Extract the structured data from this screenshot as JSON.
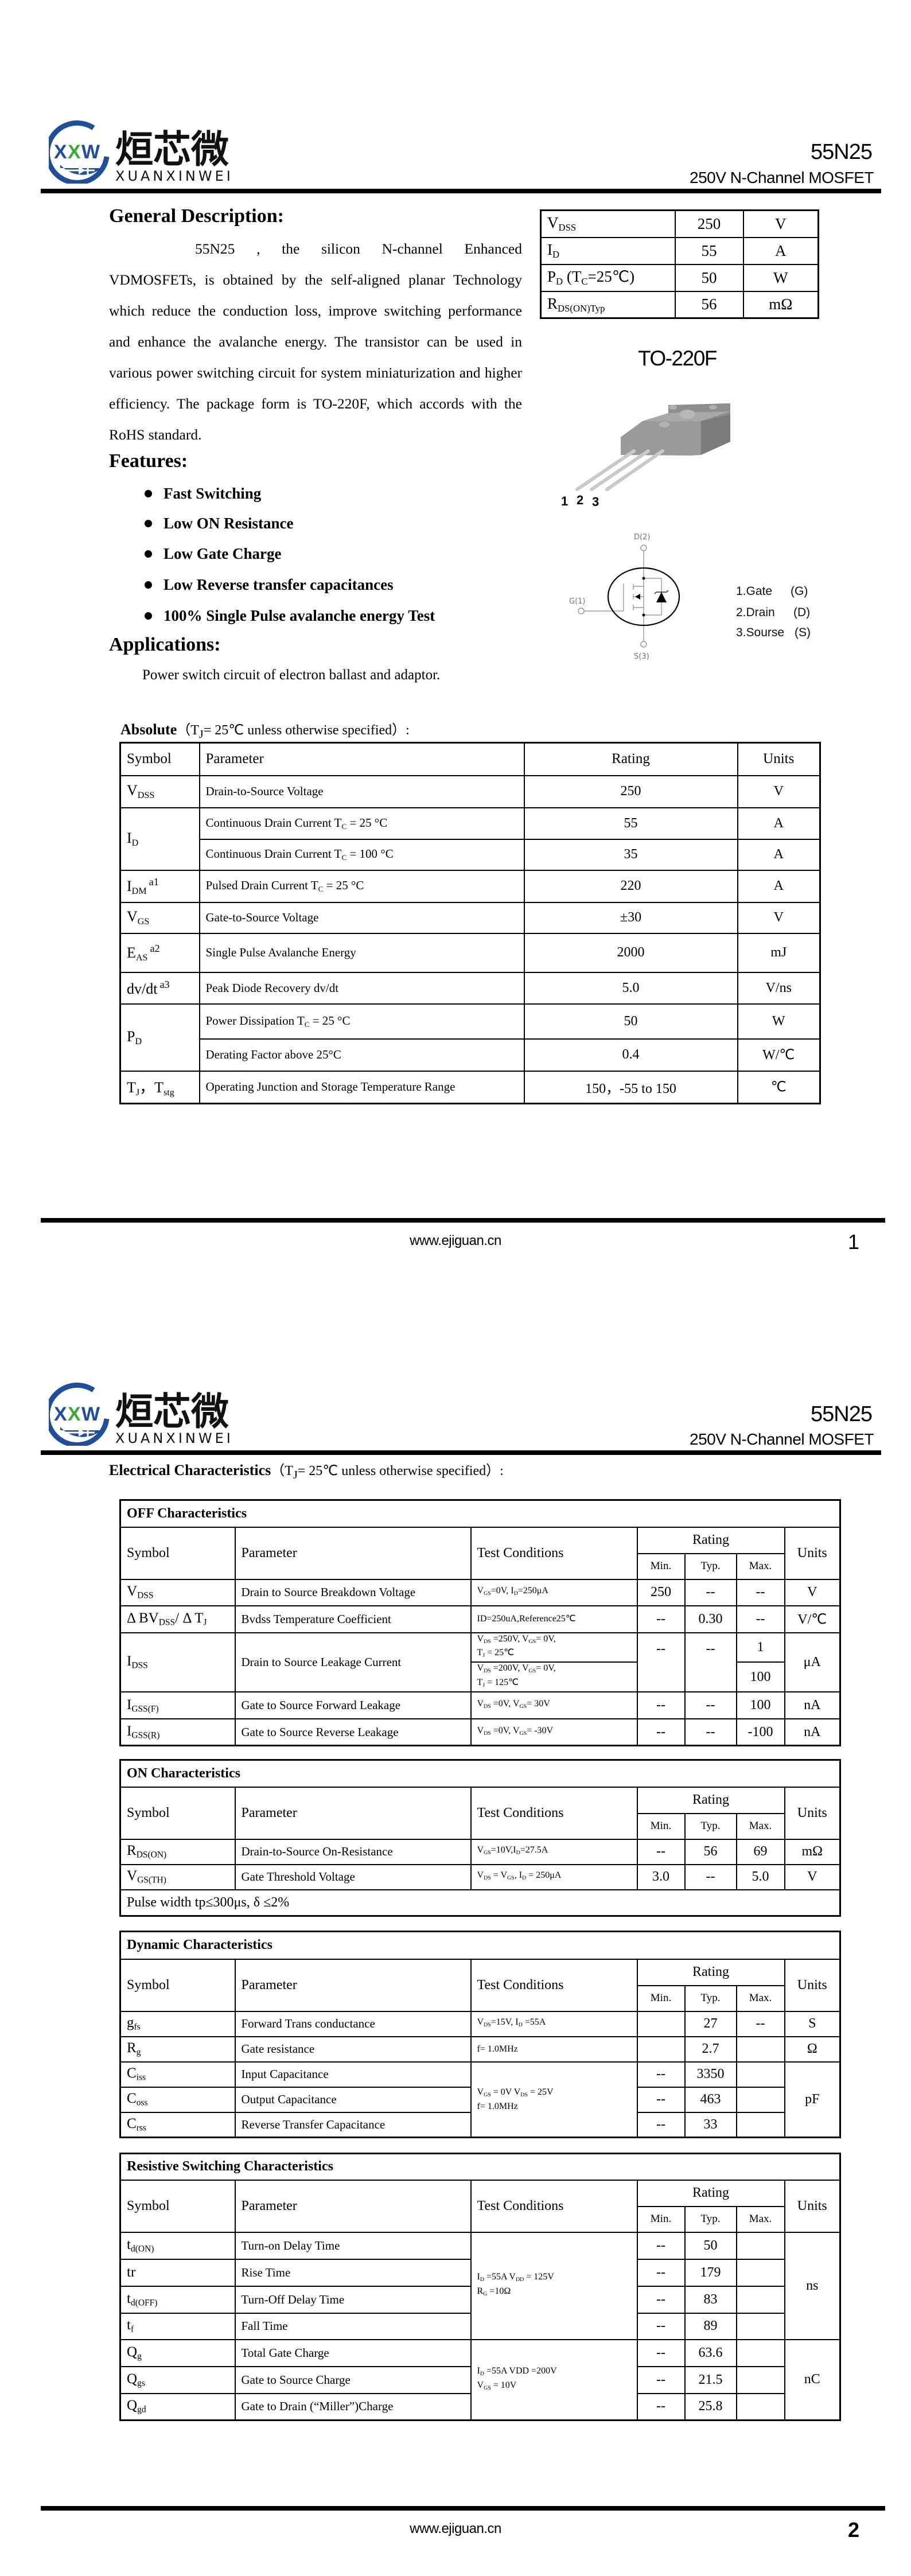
{
  "brand": {
    "logo_cn": "烜芯微",
    "logo_en": "XUANXINWEI",
    "logo_mark": "XXW",
    "blue": "#1f4e9a",
    "green": "#3aaa35"
  },
  "header": {
    "part": "55N25",
    "subtitle": "250V N-Channel MOSFET"
  },
  "footer": {
    "url": "www.ejiguan.cn",
    "pages": [
      "1",
      "2"
    ]
  },
  "page1": {
    "general_title": "General Description:",
    "description": "55N25 , the silicon N-channel Enhanced VDMOSFETs, is obtained by the self-aligned planar Technology which reduce the conduction loss, improve switching performance and enhance the avalanche energy. The transistor can be used in various power switching circuit for system miniaturization and higher efficiency. The package form is TO-220F, which accords with the RoHS standard.",
    "summary": [
      {
        "sym": [
          {
            "t": "V"
          },
          {
            "sub": "DSS"
          }
        ],
        "val": "250",
        "unit": "V"
      },
      {
        "sym": [
          {
            "t": "I"
          },
          {
            "sub": "D"
          }
        ],
        "val": "55",
        "unit": "A"
      },
      {
        "sym": [
          {
            "t": "P"
          },
          {
            "sub": "D"
          },
          {
            "t": " (T"
          },
          {
            "sub": "C"
          },
          {
            "t": "=25℃)"
          }
        ],
        "val": "50",
        "unit": "W"
      },
      {
        "sym": [
          {
            "t": "R"
          },
          {
            "sub": "DS(ON)Typ"
          }
        ],
        "val": "56",
        "unit": "mΩ"
      }
    ],
    "package": {
      "name": "TO-220F",
      "pin_numbers": [
        "1",
        "2",
        "3"
      ]
    },
    "schematic": {
      "drain": "D(2)",
      "gate": "G(1)",
      "source": "S(3)"
    },
    "pins": [
      {
        "label": "1.Gate",
        "code": "(G)"
      },
      {
        "label": "2.Drain",
        "code": "(D)"
      },
      {
        "label": "3.Sourse",
        "code": "(S)"
      }
    ],
    "features_title": "Features:",
    "features": [
      "Fast Switching",
      "Low ON Resistance",
      "Low Gate Charge",
      "Low Reverse transfer capacitances",
      "100% Single Pulse avalanche energy Test"
    ],
    "applications_title": "Applications:",
    "applications": "Power switch circuit of electron ballast and adaptor.",
    "absolute": {
      "title_bold": "Absolute",
      "title_rest": [
        {
          "t": "（T"
        },
        {
          "sub": "J"
        },
        {
          "t": "= 25℃  unless otherwise specified）:"
        }
      ],
      "header": [
        "Symbol",
        "Parameter",
        "Rating",
        "Units"
      ],
      "rows": [
        [
          [
            {
              "t": "V"
            },
            {
              "sub": "DSS"
            }
          ],
          "Drain-to-Source Voltage",
          "250",
          "V"
        ],
        [
          {
            "v": [
              {
                "t": "I"
              },
              {
                "sub": "D"
              }
            ],
            "rs": 2
          },
          [
            {
              "t": "Continuous Drain Current T"
            },
            {
              "sub": "C"
            },
            {
              "t": " = 25 °C"
            }
          ],
          "55",
          "A"
        ],
        [
          null,
          [
            {
              "t": "Continuous Drain Current T"
            },
            {
              "sub": "C"
            },
            {
              "t": " = 100 °C"
            }
          ],
          "35",
          "A"
        ],
        [
          [
            {
              "t": "I"
            },
            {
              "sub": "DM"
            },
            {
              "sup": "a1"
            }
          ],
          [
            {
              "t": "Pulsed Drain Current T"
            },
            {
              "sub": "C"
            },
            {
              "t": " = 25 °C"
            }
          ],
          "220",
          "A"
        ],
        [
          [
            {
              "t": "V"
            },
            {
              "sub": "GS"
            }
          ],
          "Gate-to-Source Voltage",
          "±30",
          "V"
        ],
        [
          [
            {
              "t": "E"
            },
            {
              "sub": "AS"
            },
            {
              "sup": "a2"
            }
          ],
          "Single Pulse Avalanche Energy",
          "2000",
          "mJ"
        ],
        [
          [
            {
              "t": "dv/dt"
            },
            {
              "sup": "a3"
            }
          ],
          "Peak Diode Recovery dv/dt",
          "5.0",
          "V/ns"
        ],
        [
          {
            "v": [
              {
                "t": "P"
              },
              {
                "sub": "D"
              }
            ],
            "rs": 2
          },
          [
            {
              "t": "Power Dissipation T"
            },
            {
              "sub": "C"
            },
            {
              "t": " = 25 °C"
            }
          ],
          "50",
          "W"
        ],
        [
          null,
          "Derating Factor above 25°C",
          "0.4",
          "W/℃"
        ],
        [
          [
            {
              "t": "T"
            },
            {
              "sub": "J"
            },
            {
              "t": "，T"
            },
            {
              "sub": "stg"
            }
          ],
          "Operating Junction and Storage Temperature Range",
          "150，-55 to 150",
          "℃"
        ]
      ]
    }
  },
  "page2": {
    "title_bold": "Electrical Characteristics",
    "title_rest": [
      {
        "t": "（T"
      },
      {
        "sub": "J"
      },
      {
        "t": "= 25℃  unless otherwise specified）:"
      }
    ],
    "header": {
      "symbol": "Symbol",
      "parameter": "Parameter",
      "conditions": "Test Conditions",
      "rating": "Rating",
      "min": "Min.",
      "typ": "Typ.",
      "max": "Max.",
      "units": "Units"
    },
    "tables": [
      {
        "title": "OFF Characteristics",
        "rows": [
          [
            [
              {
                "t": "V"
              },
              {
                "sub": "DSS"
              }
            ],
            "Drain to Source Breakdown Voltage",
            [
              {
                "t": "V"
              },
              {
                "sub": "GS"
              },
              {
                "t": "=0V, I"
              },
              {
                "sub": "D"
              },
              {
                "t": "=250μA"
              }
            ],
            "250",
            "--",
            "--",
            "V"
          ],
          [
            [
              {
                "t": "Δ BV"
              },
              {
                "sub": "DSS"
              },
              {
                "t": "/ Δ T"
              },
              {
                "sub": "J"
              }
            ],
            "Bvdss Temperature Coefficient",
            "ID=250uA,Reference25℃",
            "--",
            "0.30",
            "--",
            "V/℃"
          ],
          [
            {
              "v": [
                {
                  "t": "I"
                },
                {
                  "sub": "DSS"
                }
              ],
              "rs": 2
            },
            {
              "v": "Drain to Source Leakage Current",
              "rs": 2
            },
            [
              {
                "t": "V"
              },
              {
                "sub": "DS"
              },
              {
                "t": " =250V, V"
              },
              {
                "sub": "GS"
              },
              {
                "t": "= 0V,"
              },
              {
                "br": true
              },
              {
                "t": "T"
              },
              {
                "sub": "J"
              },
              {
                "t": " = 25℃"
              }
            ],
            {
              "v": "--",
              "rs": 2,
              "top": true
            },
            {
              "v": "--",
              "rs": 2,
              "top": true
            },
            "1",
            {
              "v": "μA",
              "rs": 2
            }
          ],
          [
            null,
            null,
            [
              {
                "t": "V"
              },
              {
                "sub": "DS"
              },
              {
                "t": " =200V, V"
              },
              {
                "sub": "GS"
              },
              {
                "t": "= 0V,"
              },
              {
                "br": true
              },
              {
                "t": "T"
              },
              {
                "sub": "J"
              },
              {
                "t": " = 125℃"
              }
            ],
            null,
            null,
            "100",
            null
          ],
          [
            [
              {
                "t": "I"
              },
              {
                "sub": "GSS(F)"
              }
            ],
            "Gate to Source Forward Leakage",
            [
              {
                "t": "V"
              },
              {
                "sub": "DS"
              },
              {
                "t": " =0V, V"
              },
              {
                "sub": "GS"
              },
              {
                "t": "= 30V"
              }
            ],
            "--",
            "--",
            "100",
            "nA"
          ],
          [
            [
              {
                "t": "I"
              },
              {
                "sub": "GSS(R)"
              }
            ],
            "Gate to Source Reverse Leakage",
            [
              {
                "t": "V"
              },
              {
                "sub": "DS"
              },
              {
                "t": " =0V, V"
              },
              {
                "sub": "GS"
              },
              {
                "t": "= -30V"
              }
            ],
            "--",
            "--",
            "-100",
            "nA"
          ]
        ]
      },
      {
        "title": "ON Characteristics",
        "rows": [
          [
            [
              {
                "t": "R"
              },
              {
                "sub": "DS(ON)"
              }
            ],
            "Drain-to-Source On-Resistance",
            [
              {
                "t": "V"
              },
              {
                "sub": "GS"
              },
              {
                "t": "=10V,I"
              },
              {
                "sub": "D"
              },
              {
                "t": "=27.5A"
              }
            ],
            "--",
            "56",
            "69",
            "mΩ"
          ],
          [
            [
              {
                "t": "V"
              },
              {
                "sub": "GS(TH)"
              }
            ],
            "Gate Threshold Voltage",
            [
              {
                "t": "V"
              },
              {
                "sub": "DS"
              },
              {
                "t": " = V"
              },
              {
                "sub": "GS"
              },
              {
                "t": ", I"
              },
              {
                "sub": "D"
              },
              {
                "t": " = 250μA"
              }
            ],
            "3.0",
            "--",
            "5.0",
            "V"
          ]
        ],
        "note": "Pulse width tp≤300μs, δ ≤2%"
      },
      {
        "title": "Dynamic Characteristics",
        "rows": [
          [
            [
              {
                "t": "g"
              },
              {
                "sub": "fs"
              }
            ],
            "Forward Trans conductance",
            [
              {
                "t": "V"
              },
              {
                "sub": "DS"
              },
              {
                "t": "=15V, I"
              },
              {
                "sub": "D"
              },
              {
                "t": " =55A"
              }
            ],
            "",
            "27",
            "--",
            "S"
          ],
          [
            [
              {
                "t": "R"
              },
              {
                "sub": "g"
              }
            ],
            "Gate resistance",
            "f= 1.0MHz",
            "",
            "2.7",
            "",
            "Ω"
          ],
          [
            [
              {
                "t": "C"
              },
              {
                "sub": "iss"
              }
            ],
            "Input Capacitance",
            {
              "v": [
                {
                  "t": "V"
                },
                {
                  "sub": "GS"
                },
                {
                  "t": " = 0V V"
                },
                {
                  "sub": "DS"
                },
                {
                  "t": " = 25V"
                },
                {
                  "br": true
                },
                {
                  "t": "f= 1.0MHz"
                }
              ],
              "rs": 3
            },
            "--",
            "3350",
            "",
            {
              "v": "pF",
              "rs": 3
            }
          ],
          [
            [
              {
                "t": "C"
              },
              {
                "sub": "oss"
              }
            ],
            "Output Capacitance",
            null,
            "--",
            "463",
            "",
            null
          ],
          [
            [
              {
                "t": "C"
              },
              {
                "sub": "rss"
              }
            ],
            "Reverse Transfer Capacitance",
            null,
            "--",
            "33",
            "",
            null
          ]
        ]
      },
      {
        "title": "Resistive Switching Characteristics",
        "rows": [
          [
            [
              {
                "t": "t"
              },
              {
                "sub": "d(ON)"
              }
            ],
            "Turn-on Delay Time",
            {
              "v": [
                {
                  "t": "I"
                },
                {
                  "sub": "D"
                },
                {
                  "t": " =55A    V"
                },
                {
                  "sub": "DD"
                },
                {
                  "t": " = 125V"
                },
                {
                  "br": true
                },
                {
                  "t": "R"
                },
                {
                  "sub": "G"
                },
                {
                  "t": " =10Ω"
                }
              ],
              "rs": 4
            },
            "--",
            "50",
            "",
            {
              "v": "ns",
              "rs": 4
            }
          ],
          [
            "tr",
            "Rise Time",
            null,
            "--",
            "179",
            "",
            null
          ],
          [
            [
              {
                "t": "t"
              },
              {
                "sub": "d(OFF)"
              }
            ],
            "Turn-Off Delay Time",
            null,
            "--",
            "83",
            "",
            null
          ],
          [
            [
              {
                "t": "t"
              },
              {
                "sub": "f"
              }
            ],
            "Fall Time",
            null,
            "--",
            "89",
            "",
            null
          ],
          [
            [
              {
                "t": "Q"
              },
              {
                "sub": "g"
              }
            ],
            "Total Gate Charge",
            {
              "v": [
                {
                  "t": "I"
                },
                {
                  "sub": "D"
                },
                {
                  "t": " =55A    VDD =200V"
                },
                {
                  "br": true
                },
                {
                  "t": "V"
                },
                {
                  "sub": "GS"
                },
                {
                  "t": " = 10V"
                }
              ],
              "rs": 3
            },
            "--",
            "63.6",
            "",
            {
              "v": "nC",
              "rs": 3
            }
          ],
          [
            [
              {
                "t": "Q"
              },
              {
                "sub": "gs"
              }
            ],
            "Gate to Source Charge",
            null,
            "--",
            "21.5",
            "",
            null
          ],
          [
            [
              {
                "t": "Q"
              },
              {
                "sub": "gd"
              }
            ],
            "Gate to Drain (“Miller”)Charge",
            null,
            "--",
            "25.8",
            "",
            null
          ]
        ]
      }
    ]
  }
}
